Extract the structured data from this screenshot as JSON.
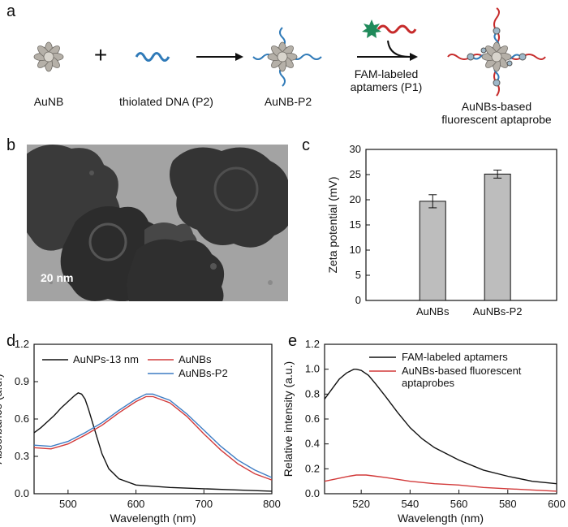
{
  "panel_labels": [
    "a",
    "b",
    "c",
    "d",
    "e"
  ],
  "scheme": {
    "items": [
      {
        "label": "AuNB"
      },
      {
        "label": "thiolated DNA (P2)"
      },
      {
        "label": "AuNB-P2"
      },
      {
        "label": "AuNBs-based",
        "label2": "fluorescent aptaprobe"
      }
    ],
    "plus": "+",
    "reagent_line1": "FAM-labeled",
    "reagent_line2": "aptamers (P1)"
  },
  "tem": {
    "scale_bar_label": "20 nm"
  },
  "colors": {
    "black": "#111111",
    "red": "#d23a3a",
    "blue": "#3d7cc4",
    "bar_fill": "#bdbdbd",
    "dna_blue": "#2f7ab8",
    "fam_red": "#c62a2a",
    "fam_green": "#1f8a5a"
  },
  "chart_data": [
    {
      "panel": "c",
      "type": "bar",
      "ylabel": "Zeta potential (mV)",
      "xlabel": "",
      "categories": [
        "AuNBs",
        "AuNBs-P2"
      ],
      "values": [
        19.7,
        25.1
      ],
      "errors": [
        1.3,
        0.8
      ],
      "ylim": [
        0,
        30
      ],
      "yticks": [
        0,
        5,
        10,
        15,
        20,
        25,
        30
      ]
    },
    {
      "panel": "d",
      "type": "line",
      "xlabel": "Wavelength (nm)",
      "ylabel": "Absorbance (a.u.)",
      "xlim": [
        450,
        800
      ],
      "ylim": [
        0,
        1.2
      ],
      "xticks": [
        500,
        600,
        700,
        800
      ],
      "yticks": [
        0.0,
        0.3,
        0.6,
        0.9,
        1.2
      ],
      "legend": [
        "AuNPs-13 nm",
        "AuNBs",
        "AuNBs-P2"
      ],
      "series": [
        {
          "name": "AuNPs-13 nm",
          "color": "black",
          "x": [
            450,
            460,
            470,
            480,
            490,
            500,
            510,
            515,
            520,
            525,
            530,
            540,
            550,
            560,
            575,
            600,
            650,
            700,
            750,
            800
          ],
          "y": [
            0.49,
            0.53,
            0.58,
            0.63,
            0.69,
            0.74,
            0.79,
            0.81,
            0.8,
            0.76,
            0.68,
            0.5,
            0.32,
            0.2,
            0.12,
            0.07,
            0.05,
            0.04,
            0.03,
            0.02
          ]
        },
        {
          "name": "AuNBs",
          "color": "red",
          "x": [
            450,
            475,
            500,
            525,
            550,
            575,
            600,
            615,
            625,
            650,
            675,
            700,
            725,
            750,
            775,
            800
          ],
          "y": [
            0.37,
            0.36,
            0.4,
            0.47,
            0.55,
            0.65,
            0.74,
            0.78,
            0.78,
            0.73,
            0.62,
            0.48,
            0.35,
            0.24,
            0.16,
            0.11
          ]
        },
        {
          "name": "AuNBs-P2",
          "color": "blue",
          "x": [
            450,
            475,
            500,
            525,
            550,
            575,
            600,
            615,
            625,
            650,
            675,
            700,
            725,
            750,
            775,
            800
          ],
          "y": [
            0.39,
            0.38,
            0.42,
            0.49,
            0.57,
            0.67,
            0.76,
            0.8,
            0.8,
            0.75,
            0.64,
            0.51,
            0.38,
            0.27,
            0.19,
            0.13
          ]
        }
      ]
    },
    {
      "panel": "e",
      "type": "line",
      "xlabel": "Wavelength (nm)",
      "ylabel": "Relative intensity (a.u.)",
      "xlim": [
        505,
        600
      ],
      "ylim": [
        0,
        1.2
      ],
      "xticks": [
        520,
        540,
        560,
        580,
        600
      ],
      "yticks": [
        0.0,
        0.2,
        0.4,
        0.6,
        0.8,
        1.0,
        1.2
      ],
      "legend": [
        "FAM-labeled aptamers",
        "AuNBs-based fluorescent aptaprobes"
      ],
      "legend_lines": [
        [
          "FAM-labeled aptamers"
        ],
        [
          "AuNBs-based fluorescent",
          "aptaprobes"
        ]
      ],
      "series": [
        {
          "name": "FAM-labeled aptamers",
          "color": "black",
          "x": [
            505,
            508,
            511,
            514,
            517,
            518,
            520,
            523,
            526,
            530,
            535,
            540,
            545,
            550,
            560,
            570,
            580,
            590,
            600
          ],
          "y": [
            0.76,
            0.84,
            0.92,
            0.97,
            1.0,
            1.0,
            0.99,
            0.95,
            0.88,
            0.78,
            0.65,
            0.53,
            0.44,
            0.37,
            0.27,
            0.19,
            0.14,
            0.1,
            0.08
          ]
        },
        {
          "name": "AuNBs-based fluorescent aptaprobes",
          "color": "red",
          "x": [
            505,
            510,
            515,
            518,
            522,
            526,
            530,
            540,
            550,
            560,
            570,
            580,
            590,
            600
          ],
          "y": [
            0.1,
            0.12,
            0.14,
            0.15,
            0.15,
            0.14,
            0.13,
            0.1,
            0.08,
            0.07,
            0.05,
            0.04,
            0.03,
            0.02
          ]
        }
      ]
    }
  ]
}
